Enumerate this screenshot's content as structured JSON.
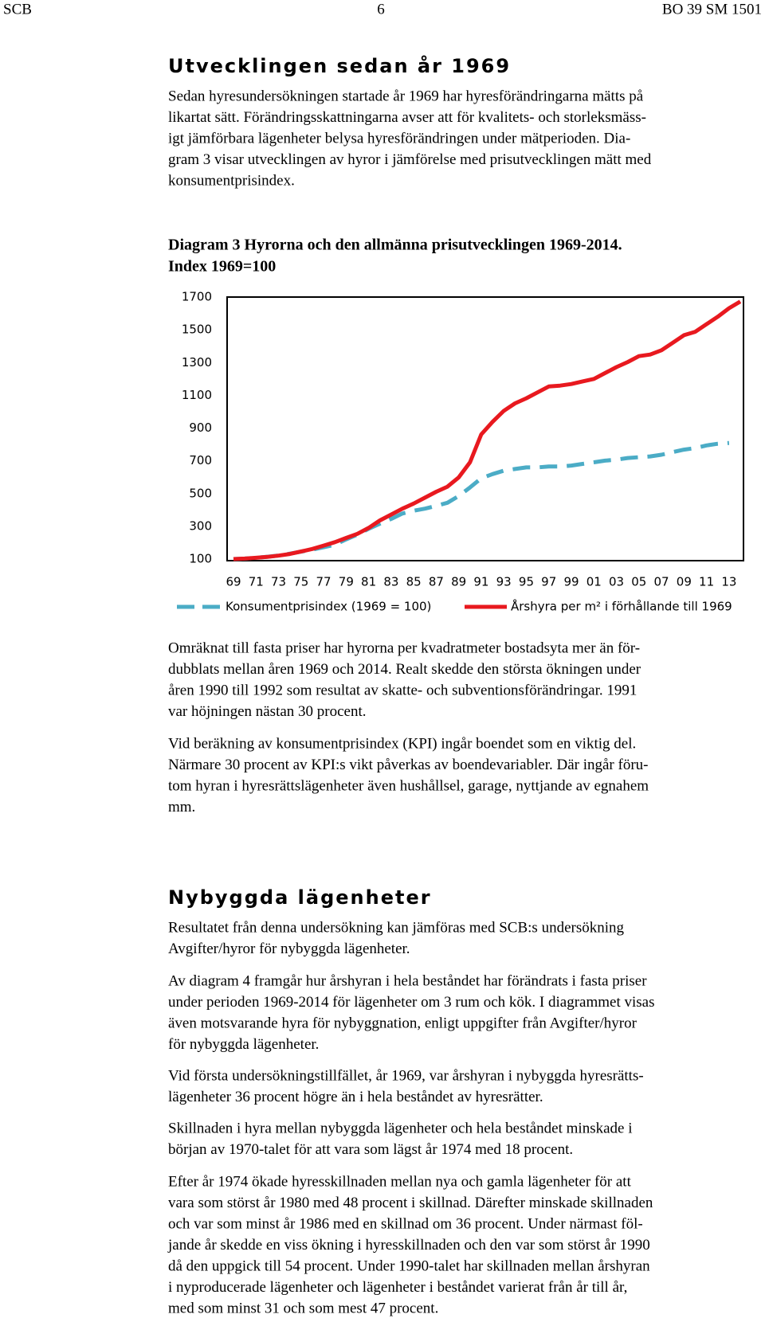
{
  "header": {
    "left": "SCB",
    "center": "6",
    "right": "BO 39 SM 1501"
  },
  "sections": [
    {
      "heading": "Utvecklingen sedan år 1969",
      "paragraphs": [
        [
          "Sedan hyresundersökningen startade år 1969 har hyresförändringarna mätts på",
          "likartat sätt. Förändringsskattningarna avser att för kvalitets- och storleksmäss-",
          "igt jämförbara lägenheter belysa hyresförändringen under mätperioden. Dia-",
          "gram 3 visar utvecklingen av hyror i jämförelse med prisutvecklingen mätt med",
          "konsumentprisindex."
        ]
      ]
    },
    {
      "paragraphs": [
        [
          "Omräknat till fasta priser har hyrorna per kvadratmeter bostadsyta mer än för-",
          "dubblats mellan åren 1969 och 2014. Realt skedde den största ökningen under",
          "åren 1990 till 1992 som resultat av skatte- och subventionsförändringar. 1991",
          "var höjningen nästan 30 procent."
        ],
        [
          "Vid beräkning av konsumentprisindex (KPI) ingår boendet som en viktig del.",
          "Närmare 30 procent av KPI:s vikt påverkas av boendevariabler. Där ingår föru-",
          "tom hyran i hyresrättslägenheter även hushållsel, garage, nyttjande av egnahem",
          "mm."
        ]
      ]
    },
    {
      "heading": "Nybyggda lägenheter",
      "paragraphs": [
        [
          "Resultatet från denna undersökning kan jämföras med SCB:s undersökning",
          "Avgifter/hyror för nybyggda lägenheter."
        ],
        [
          "Av diagram 4 framgår hur årshyran i hela beståndet har förändrats i fasta priser",
          "under perioden 1969-2014 för lägenheter om 3 rum och kök. I diagrammet visas",
          "även motsvarande hyra för nybyggnation, enligt uppgifter från Avgifter/hyror",
          "för nybyggda lägenheter."
        ],
        [
          "Vid första undersökningstillfället, år 1969, var årshyran i nybyggda hyresrätts-",
          "lägenheter 36 procent högre än i hela beståndet av hyresrätter."
        ],
        [
          "Skillnaden i hyra mellan nybyggda lägenheter och hela beståndet minskade i",
          "början av 1970-talet för att vara som lägst år 1974 med 18 procent."
        ],
        [
          "Efter år 1974 ökade hyresskillnaden mellan nya och gamla lägenheter för att",
          "vara som störst år 1980 med 48 procent i skillnad. Därefter minskade skillnaden",
          "och var som minst år 1986 med en skillnad om 36 procent. Under närmast föl-",
          "jande år skedde en viss ökning i hyresskillnaden och den var som störst år 1990",
          "då den uppgick till 54 procent. Under 1990-talet har skillnaden mellan årshyran",
          "i nyproducerade lägenheter och lägenheter i beståndet varierat från år till år,",
          "med som minst 31 och som mest 47 procent."
        ]
      ]
    }
  ],
  "chart_data": {
    "type": "line",
    "title": "Diagram 3 Hyrorna och den allmänna prisutvecklingen 1969-2014.",
    "subtitle": "Index 1969=100",
    "categories": [
      "69",
      null,
      "71",
      null,
      "73",
      null,
      "75",
      null,
      "77",
      null,
      "79",
      null,
      "81",
      null,
      "83",
      null,
      "85",
      null,
      "87",
      null,
      "89",
      null,
      "91",
      null,
      "93",
      null,
      "95",
      null,
      "97",
      null,
      "99",
      null,
      "01",
      null,
      "03",
      null,
      "05",
      null,
      "07",
      null,
      "09",
      null,
      "11",
      null,
      "13",
      null
    ],
    "series": [
      {
        "name": "Konsumentprisindex (1969 = 100)",
        "color": "#4bacc6",
        "dashed": true,
        "values": [
          100,
          103,
          108,
          114,
          122,
          133,
          145,
          158,
          172,
          187,
          220,
          250,
          285,
          316,
          345,
          378,
          395,
          408,
          425,
          444,
          485,
          537,
          593,
          619,
          640,
          650,
          660,
          660,
          665,
          665,
          671,
          681,
          691,
          701,
          707,
          717,
          722,
          727,
          737,
          753,
          768,
          778,
          794,
          804,
          809,
          null
        ]
      },
      {
        "name": "Årshyra per m² i förhållande till 1969",
        "color": "#e8191f",
        "dashed": false,
        "values": [
          100,
          103,
          108,
          113,
          121,
          131,
          146,
          162,
          182,
          203,
          229,
          254,
          290,
          336,
          372,
          408,
          439,
          475,
          511,
          542,
          599,
          691,
          861,
          938,
          1005,
          1051,
          1082,
          1118,
          1154,
          1159,
          1169,
          1185,
          1200,
          1236,
          1272,
          1303,
          1339,
          1349,
          1375,
          1421,
          1467,
          1488,
          1534,
          1580,
          1632,
          1673
        ]
      }
    ],
    "ylim": [
      100,
      1700
    ],
    "yticks": [
      100,
      300,
      500,
      700,
      900,
      1100,
      1300,
      1500,
      1700
    ],
    "grid": false
  }
}
